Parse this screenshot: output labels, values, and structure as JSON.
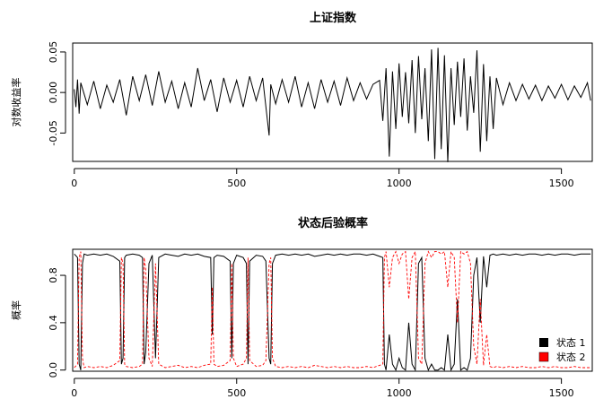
{
  "chart_data": [
    {
      "type": "line",
      "title": "上证指数",
      "xlabel": "",
      "ylabel": "对数收益率",
      "xlim": [
        -5,
        1595
      ],
      "ylim": [
        -0.085,
        0.061
      ],
      "xticks": [
        0,
        500,
        1000,
        1500
      ],
      "yticks": [
        -0.05,
        0.0,
        0.05
      ],
      "ytick_labels": [
        "-0.05",
        "0.00",
        "0.05"
      ],
      "grid": false,
      "series": [
        {
          "color": "#000000",
          "style": "solid",
          "x": [
            0,
            5,
            10,
            15,
            20,
            40,
            60,
            80,
            100,
            120,
            140,
            160,
            180,
            200,
            220,
            240,
            260,
            280,
            300,
            320,
            340,
            360,
            380,
            400,
            420,
            440,
            460,
            480,
            500,
            520,
            540,
            560,
            580,
            600,
            605,
            620,
            640,
            660,
            680,
            700,
            720,
            740,
            760,
            780,
            800,
            820,
            840,
            860,
            880,
            900,
            920,
            940,
            950,
            960,
            970,
            980,
            990,
            1000,
            1010,
            1020,
            1030,
            1040,
            1050,
            1060,
            1070,
            1080,
            1090,
            1100,
            1110,
            1120,
            1130,
            1140,
            1150,
            1160,
            1170,
            1180,
            1190,
            1200,
            1210,
            1220,
            1230,
            1240,
            1250,
            1260,
            1270,
            1280,
            1290,
            1300,
            1320,
            1340,
            1360,
            1380,
            1400,
            1420,
            1440,
            1460,
            1480,
            1500,
            1520,
            1540,
            1560,
            1580,
            1590
          ],
          "y": [
            0.004,
            -0.018,
            0.016,
            -0.026,
            0.012,
            -0.015,
            0.014,
            -0.02,
            0.009,
            -0.012,
            0.016,
            -0.028,
            0.02,
            -0.01,
            0.022,
            -0.016,
            0.026,
            -0.012,
            0.014,
            -0.02,
            0.012,
            -0.018,
            0.03,
            -0.01,
            0.016,
            -0.024,
            0.018,
            -0.012,
            0.015,
            -0.018,
            0.02,
            -0.01,
            0.018,
            -0.053,
            0.01,
            -0.014,
            0.016,
            -0.012,
            0.02,
            -0.018,
            0.012,
            -0.02,
            0.016,
            -0.012,
            0.014,
            -0.016,
            0.018,
            -0.01,
            0.012,
            -0.008,
            0.01,
            0.015,
            -0.035,
            0.03,
            -0.079,
            0.026,
            -0.045,
            0.036,
            -0.03,
            0.025,
            -0.038,
            0.04,
            -0.05,
            0.045,
            -0.033,
            0.03,
            -0.06,
            0.053,
            -0.082,
            0.055,
            -0.07,
            0.046,
            -0.086,
            0.03,
            -0.04,
            0.038,
            -0.03,
            0.042,
            -0.047,
            0.02,
            -0.025,
            0.052,
            -0.073,
            0.035,
            -0.06,
            0.02,
            -0.045,
            0.018,
            -0.015,
            0.012,
            -0.01,
            0.01,
            -0.008,
            0.009,
            -0.01,
            0.008,
            -0.007,
            0.01,
            -0.009,
            0.008,
            -0.006,
            0.012,
            -0.01
          ]
        }
      ]
    },
    {
      "type": "line",
      "title": "状态后验概率",
      "xlabel": "",
      "ylabel": "概率",
      "xlim": [
        -5,
        1595
      ],
      "ylim": [
        -0.01,
        1.02
      ],
      "xticks": [
        0,
        500,
        1000,
        1500
      ],
      "yticks": [
        0.0,
        0.4,
        0.8
      ],
      "ytick_labels": [
        "0.0",
        "0.4",
        "0.8"
      ],
      "grid": false,
      "legend_position": "bottom-right",
      "legend": [
        "状态 1",
        "状态 2"
      ],
      "series": [
        {
          "name": "状态 1",
          "color": "#000000",
          "style": "solid",
          "x": [
            0,
            10,
            15,
            20,
            25,
            30,
            40,
            60,
            80,
            100,
            120,
            140,
            145,
            150,
            155,
            160,
            180,
            200,
            210,
            215,
            220,
            230,
            240,
            250,
            260,
            280,
            300,
            320,
            340,
            360,
            380,
            400,
            420,
            425,
            430,
            440,
            460,
            480,
            485,
            490,
            500,
            520,
            530,
            535,
            540,
            560,
            580,
            590,
            600,
            605,
            610,
            620,
            640,
            660,
            680,
            700,
            720,
            740,
            760,
            780,
            800,
            820,
            840,
            860,
            880,
            900,
            920,
            940,
            950,
            955,
            960,
            970,
            980,
            990,
            1000,
            1010,
            1020,
            1030,
            1040,
            1050,
            1060,
            1070,
            1080,
            1090,
            1100,
            1110,
            1120,
            1130,
            1140,
            1150,
            1160,
            1170,
            1180,
            1190,
            1200,
            1210,
            1220,
            1230,
            1240,
            1250,
            1260,
            1270,
            1280,
            1290,
            1300,
            1320,
            1340,
            1360,
            1380,
            1400,
            1420,
            1440,
            1460,
            1480,
            1500,
            1520,
            1540,
            1560,
            1580,
            1590
          ],
          "y": [
            0.98,
            0.95,
            0.05,
            0.0,
            0.9,
            0.98,
            0.97,
            0.98,
            0.97,
            0.98,
            0.96,
            0.92,
            0.05,
            0.1,
            0.95,
            0.97,
            0.98,
            0.97,
            0.95,
            0.05,
            0.15,
            0.9,
            0.97,
            0.1,
            0.95,
            0.98,
            0.97,
            0.96,
            0.98,
            0.97,
            0.98,
            0.96,
            0.95,
            0.3,
            0.95,
            0.97,
            0.96,
            0.92,
            0.1,
            0.9,
            0.97,
            0.95,
            0.9,
            0.05,
            0.92,
            0.97,
            0.96,
            0.92,
            0.1,
            0.05,
            0.9,
            0.97,
            0.98,
            0.97,
            0.98,
            0.97,
            0.98,
            0.96,
            0.97,
            0.98,
            0.97,
            0.98,
            0.97,
            0.98,
            0.98,
            0.97,
            0.98,
            0.96,
            0.95,
            0.05,
            0.0,
            0.3,
            0.05,
            0.0,
            0.1,
            0.02,
            0.0,
            0.4,
            0.05,
            0.0,
            0.9,
            0.95,
            0.1,
            0.0,
            0.05,
            0.0,
            0.0,
            0.02,
            0.0,
            0.3,
            0.0,
            0.05,
            0.6,
            0.0,
            0.02,
            0.0,
            0.1,
            0.8,
            0.95,
            0.4,
            0.96,
            0.7,
            0.97,
            0.98,
            0.97,
            0.98,
            0.97,
            0.98,
            0.97,
            0.98,
            0.98,
            0.97,
            0.98,
            0.97,
            0.98,
            0.98,
            0.97,
            0.98,
            0.98,
            0.98
          ]
        },
        {
          "name": "状态 2",
          "color": "#ff0000",
          "style": "dashed",
          "x": [
            0,
            10,
            15,
            20,
            25,
            30,
            40,
            60,
            80,
            100,
            120,
            140,
            145,
            150,
            155,
            160,
            180,
            200,
            210,
            215,
            220,
            230,
            240,
            250,
            260,
            280,
            300,
            320,
            340,
            360,
            380,
            400,
            420,
            425,
            430,
            440,
            460,
            480,
            485,
            490,
            500,
            520,
            530,
            535,
            540,
            560,
            580,
            590,
            600,
            605,
            610,
            620,
            640,
            660,
            680,
            700,
            720,
            740,
            760,
            780,
            800,
            820,
            840,
            860,
            880,
            900,
            920,
            940,
            950,
            955,
            960,
            970,
            980,
            990,
            1000,
            1010,
            1020,
            1030,
            1040,
            1050,
            1060,
            1070,
            1080,
            1090,
            1100,
            1110,
            1120,
            1130,
            1140,
            1150,
            1160,
            1170,
            1180,
            1190,
            1200,
            1210,
            1220,
            1230,
            1240,
            1250,
            1260,
            1270,
            1280,
            1290,
            1300,
            1320,
            1340,
            1360,
            1380,
            1400,
            1420,
            1440,
            1460,
            1480,
            1500,
            1520,
            1540,
            1560,
            1580,
            1590
          ],
          "y": [
            0.02,
            0.05,
            0.95,
            1.0,
            0.1,
            0.02,
            0.03,
            0.02,
            0.03,
            0.02,
            0.04,
            0.08,
            0.95,
            0.9,
            0.05,
            0.03,
            0.02,
            0.03,
            0.05,
            0.95,
            0.85,
            0.1,
            0.03,
            0.9,
            0.05,
            0.02,
            0.03,
            0.04,
            0.02,
            0.03,
            0.02,
            0.04,
            0.05,
            0.7,
            0.05,
            0.03,
            0.04,
            0.08,
            0.9,
            0.1,
            0.03,
            0.05,
            0.1,
            0.95,
            0.08,
            0.03,
            0.04,
            0.08,
            0.9,
            0.95,
            0.1,
            0.03,
            0.02,
            0.03,
            0.02,
            0.03,
            0.02,
            0.04,
            0.03,
            0.02,
            0.03,
            0.02,
            0.03,
            0.02,
            0.02,
            0.03,
            0.02,
            0.04,
            0.05,
            0.95,
            1.0,
            0.7,
            0.95,
            1.0,
            0.9,
            0.98,
            1.0,
            0.6,
            0.95,
            1.0,
            0.1,
            0.05,
            0.9,
            1.0,
            0.95,
            1.0,
            1.0,
            0.98,
            1.0,
            0.7,
            1.0,
            0.95,
            0.4,
            1.0,
            0.98,
            1.0,
            0.9,
            0.2,
            0.05,
            0.6,
            0.04,
            0.3,
            0.03,
            0.02,
            0.03,
            0.02,
            0.03,
            0.02,
            0.03,
            0.02,
            0.02,
            0.03,
            0.02,
            0.03,
            0.02,
            0.02,
            0.03,
            0.02,
            0.02,
            0.02
          ]
        }
      ]
    }
  ]
}
